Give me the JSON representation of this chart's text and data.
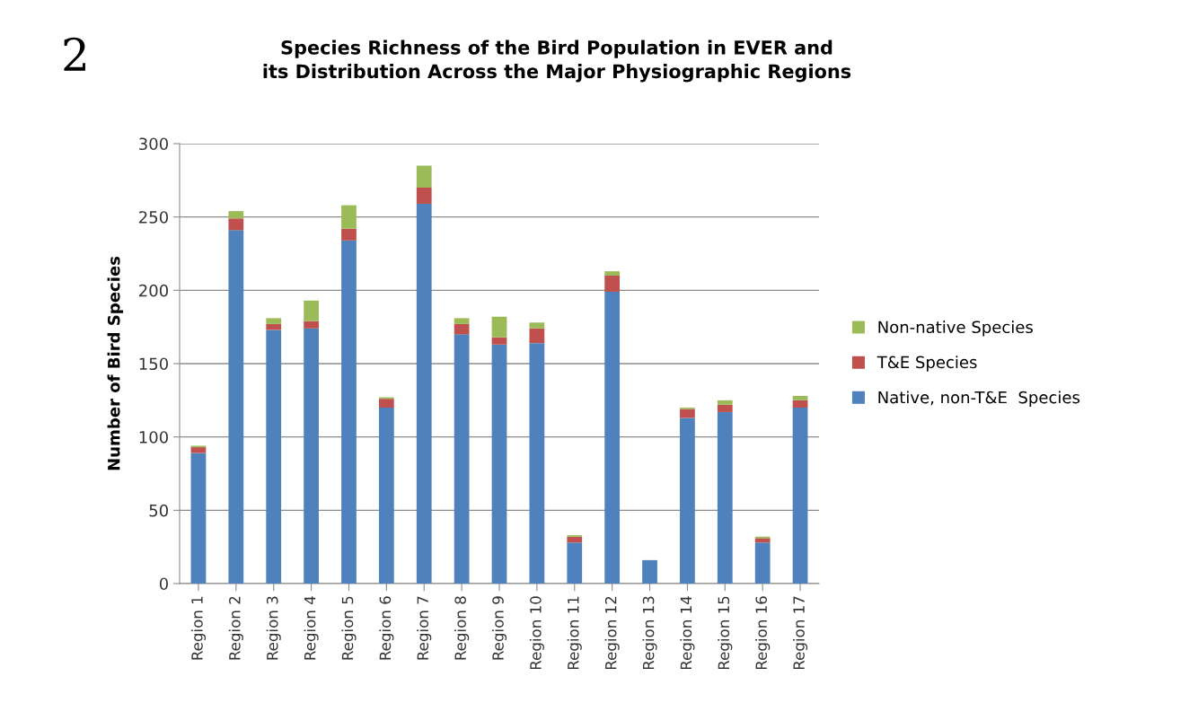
{
  "chart_data": {
    "type": "bar",
    "stacked": true,
    "title": "Species Richness of the Bird Population in EVER and\nits Distribution Across the Major Physiographic Regions",
    "ylabel": "Number of Bird Species",
    "annotations": [
      "2"
    ],
    "categories": [
      "Region 1",
      "Region 2",
      "Region 3",
      "Region 4",
      "Region 5",
      "Region 6",
      "Region 7",
      "Region 8",
      "Region 9",
      "Region 10",
      "Region 11",
      "Region 12",
      "Region 13",
      "Region 14",
      "Region 15",
      "Region 16",
      "Region 17"
    ],
    "series": [
      {
        "name": "Native, non-T&E  Species",
        "color": "#4f81bd",
        "values": [
          89,
          241,
          173,
          174,
          234,
          120,
          259,
          170,
          163,
          164,
          28,
          199,
          16,
          113,
          117,
          28,
          120
        ]
      },
      {
        "name": "T&E Species",
        "color": "#c0504d",
        "values": [
          4,
          8,
          4,
          5,
          8,
          6,
          11,
          7,
          5,
          10,
          4,
          11,
          0,
          6,
          5,
          3,
          5
        ]
      },
      {
        "name": "Non-native Species",
        "color": "#9bbb59",
        "values": [
          1,
          5,
          4,
          14,
          16,
          1,
          15,
          4,
          14,
          4,
          1,
          3,
          0,
          1,
          3,
          1,
          3
        ]
      }
    ],
    "ylim": [
      0,
      300
    ],
    "yticks": [
      0,
      50,
      100,
      150,
      200,
      250,
      300
    ],
    "grid": "y",
    "legend": "right"
  }
}
